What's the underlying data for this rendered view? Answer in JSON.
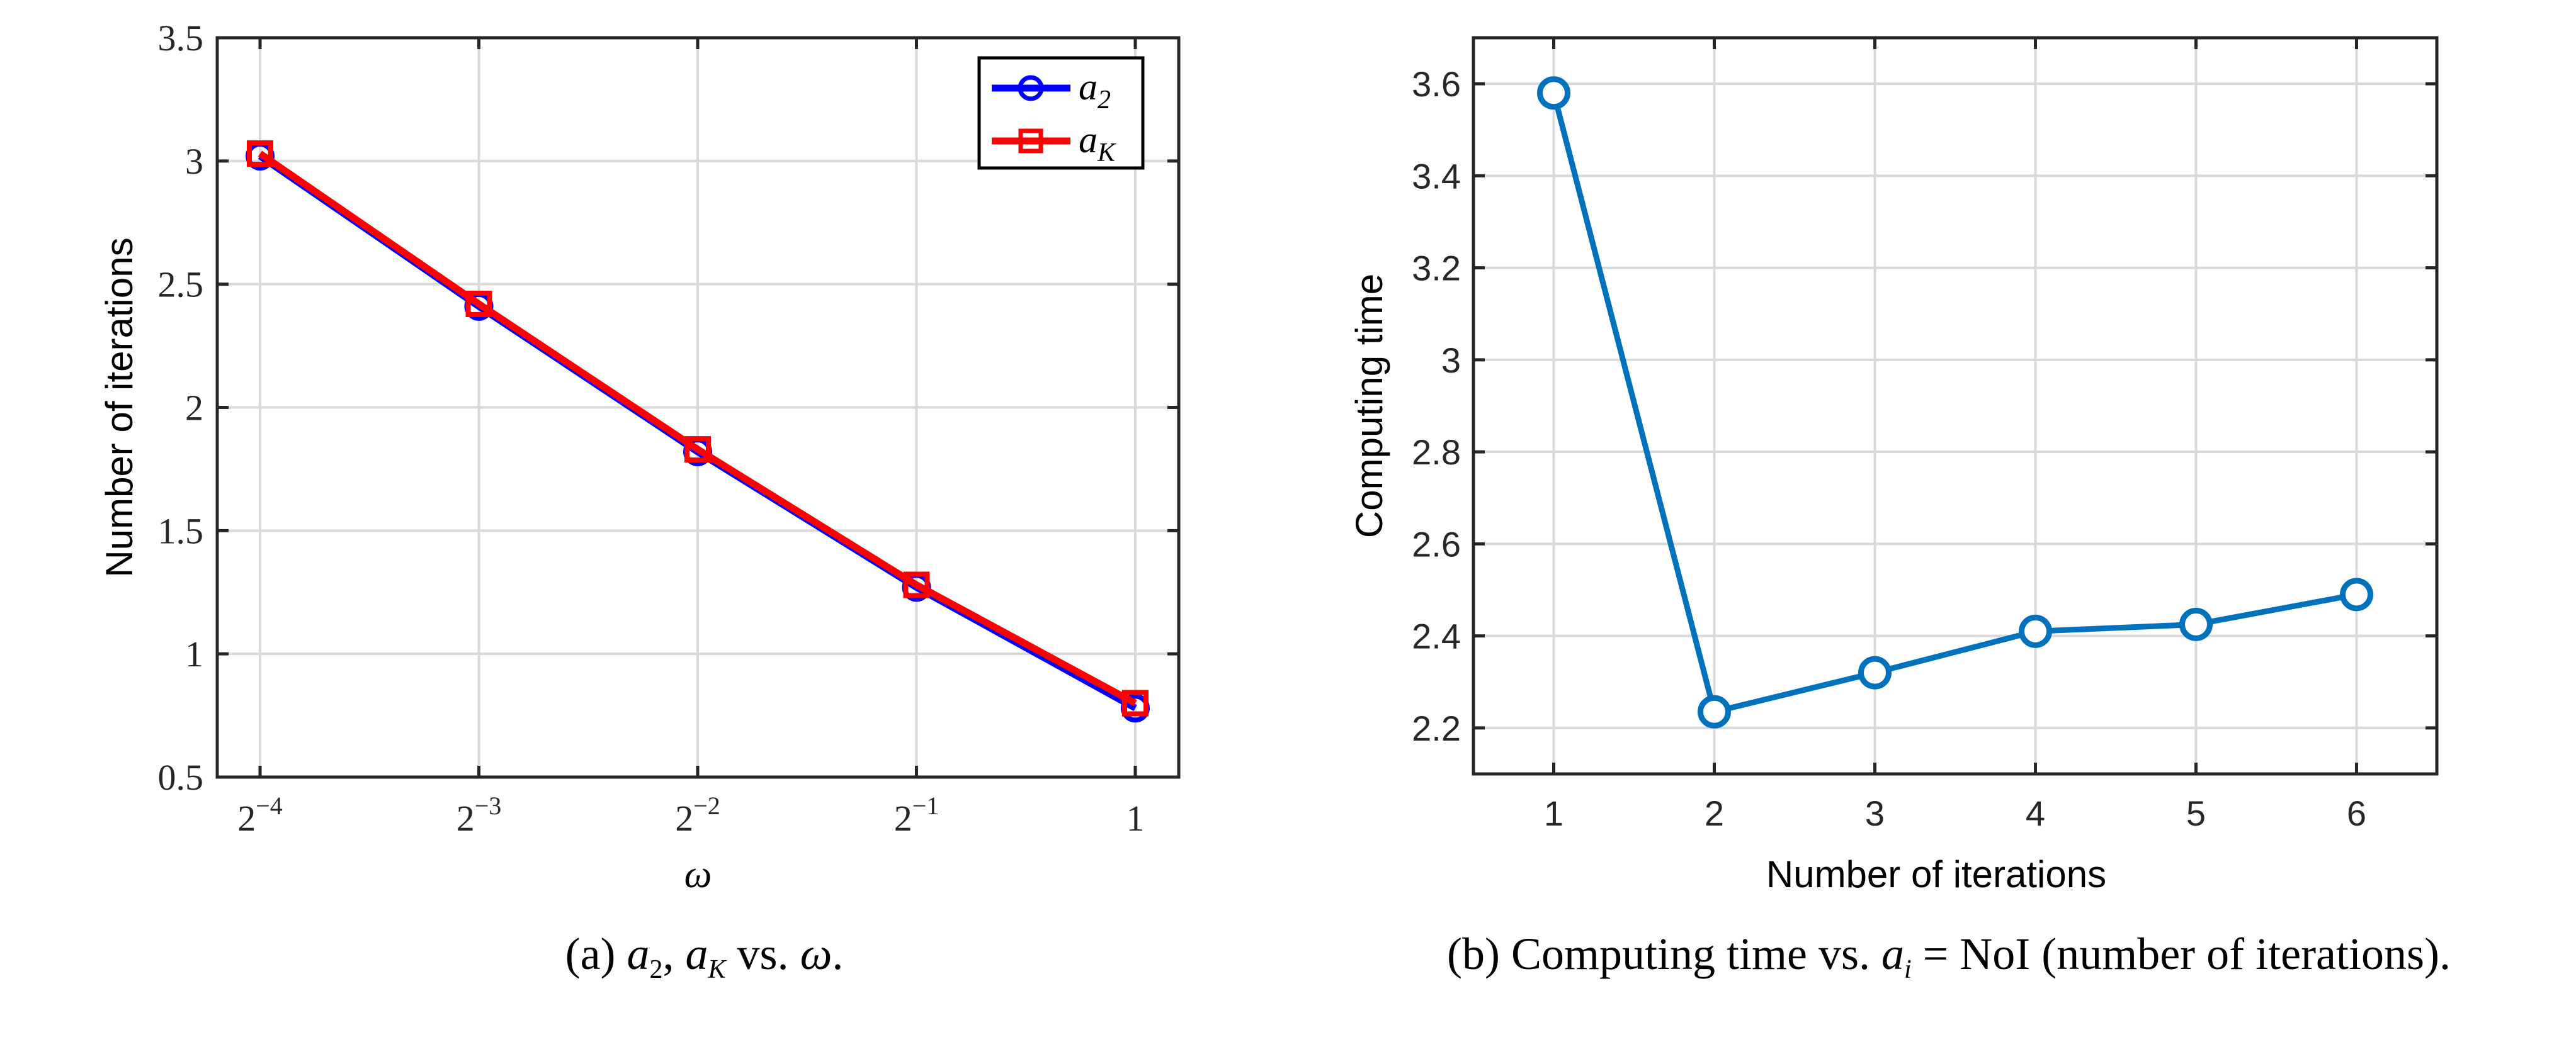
{
  "chart_data": [
    {
      "type": "line",
      "xlabel": "ω",
      "ylabel": "Number of iterations",
      "x": [
        0.0625,
        0.125,
        0.25,
        0.5,
        1
      ],
      "xscale": "log2",
      "xticks": [
        {
          "base": "2",
          "exp": "−4"
        },
        {
          "base": "2",
          "exp": "−3"
        },
        {
          "base": "2",
          "exp": "−2"
        },
        {
          "base": "2",
          "exp": "−1"
        },
        {
          "base": "1",
          "exp": ""
        }
      ],
      "ylim": [
        0.5,
        3.5
      ],
      "yticks": [
        "0.5",
        "1",
        "1.5",
        "2",
        "2.5",
        "3",
        "3.5"
      ],
      "grid": true,
      "legend": "top-right",
      "series": [
        {
          "name": "a",
          "sub": "2",
          "color": "#0000ff",
          "marker": "circle",
          "values": [
            3.02,
            2.41,
            1.82,
            1.27,
            0.78
          ]
        },
        {
          "name": "a",
          "sub": "K",
          "color": "#ff0000",
          "marker": "square",
          "values": [
            3.03,
            2.42,
            1.83,
            1.28,
            0.8
          ]
        }
      ],
      "caption": {
        "prefix": "(a) ",
        "parts": [
          "a",
          "2",
          ", ",
          "a",
          "K",
          " vs. ",
          "ω",
          "."
        ]
      }
    },
    {
      "type": "line",
      "xlabel": "Number of iterations",
      "ylabel": "Computing time",
      "x": [
        1,
        2,
        3,
        4,
        5,
        6
      ],
      "xticks": [
        "1",
        "2",
        "3",
        "4",
        "5",
        "6"
      ],
      "xlim": [
        0.5,
        6.5
      ],
      "ylim": [
        2.1,
        3.7
      ],
      "yticks": [
        "2.2",
        "2.4",
        "2.6",
        "2.8",
        "3",
        "3.2",
        "3.4",
        "3.6"
      ],
      "grid": true,
      "series": [
        {
          "color": "#0072bd",
          "marker": "circle",
          "values": [
            3.58,
            2.235,
            2.32,
            2.41,
            2.425,
            2.49
          ]
        }
      ],
      "caption": {
        "prefix": "(b) Computing time vs. ",
        "var": "a",
        "sub": "i",
        "suffix": " = NoI (number of iterations)."
      }
    }
  ]
}
